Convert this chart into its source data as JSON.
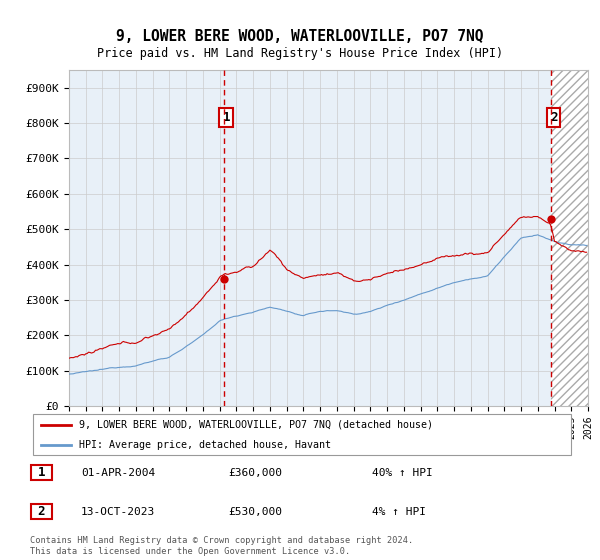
{
  "title": "9, LOWER BERE WOOD, WATERLOOVILLE, PO7 7NQ",
  "subtitle": "Price paid vs. HM Land Registry's House Price Index (HPI)",
  "ylim": [
    0,
    950000
  ],
  "yticks": [
    0,
    100000,
    200000,
    300000,
    400000,
    500000,
    600000,
    700000,
    800000,
    900000
  ],
  "ytick_labels": [
    "£0",
    "£100K",
    "£200K",
    "£300K",
    "£400K",
    "£500K",
    "£600K",
    "£700K",
    "£800K",
    "£900K"
  ],
  "legend_line1": "9, LOWER BERE WOOD, WATERLOOVILLE, PO7 7NQ (detached house)",
  "legend_line2": "HPI: Average price, detached house, Havant",
  "line1_color": "#cc0000",
  "line2_color": "#6699cc",
  "bg_fill_color": "#ddeeff",
  "hatch_color": "#bbbbbb",
  "marker1_date": "01-APR-2004",
  "marker1_price": "£360,000",
  "marker1_hpi": "40% ↑ HPI",
  "marker2_date": "13-OCT-2023",
  "marker2_price": "£530,000",
  "marker2_hpi": "4% ↑ HPI",
  "vline1_x": 2004.25,
  "vline2_x": 2023.79,
  "point1_y": 360000,
  "point2_y": 530000,
  "xmin": 1995,
  "xmax": 2026,
  "footer": "Contains HM Land Registry data © Crown copyright and database right 2024.\nThis data is licensed under the Open Government Licence v3.0.",
  "grid_color": "#cccccc",
  "plot_bg": "#e8f0f8"
}
